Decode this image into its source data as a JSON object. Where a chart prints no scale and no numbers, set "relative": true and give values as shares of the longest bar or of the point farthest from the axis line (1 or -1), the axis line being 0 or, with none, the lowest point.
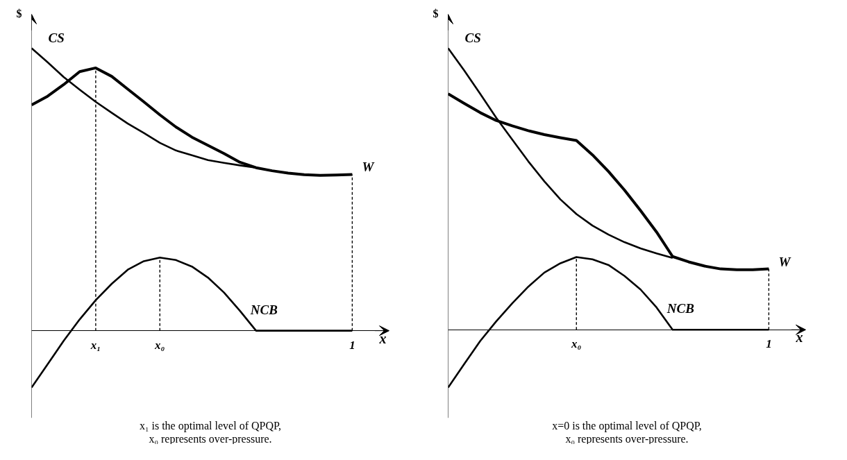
{
  "chart_data": [
    {
      "type": "line",
      "relative": true,
      "xlabel": "x",
      "ylabel": "$",
      "tick_labels": "x",
      "legend": false,
      "marker": "none",
      "categories": [
        null,
        null,
        null,
        null,
        "x₁",
        null,
        null,
        null,
        "x₀",
        null,
        null,
        null,
        null,
        null,
        null,
        null,
        null,
        null,
        null,
        null,
        "1"
      ],
      "series": [
        {
          "name": "CS",
          "color": "#000000",
          "values": [
            1,
            0.95,
            0.898,
            0.853,
            0.81,
            0.771,
            0.733,
            0.7,
            0.665,
            0.638,
            0.621,
            0.604,
            0.594,
            0.585,
            0.577,
            null,
            null,
            null,
            null,
            null,
            null
          ]
        },
        {
          "name": "W",
          "color": "#000000",
          "values": [
            0.799,
            0.83,
            0.871,
            0.917,
            0.93,
            0.9,
            0.855,
            0.81,
            0.764,
            0.721,
            0.685,
            0.656,
            0.627,
            0.596,
            0.577,
            0.566,
            0.558,
            0.552,
            0.55,
            0.551,
            0.553
          ]
        },
        {
          "name": "NCB",
          "color": "#000000",
          "values": [
            -0.201,
            -0.119,
            -0.036,
            0.04,
            0.108,
            0.166,
            0.216,
            0.246,
            0.259,
            0.25,
            0.227,
            0.188,
            0.135,
            0.07,
            0,
            0,
            0,
            0,
            0,
            0,
            0
          ]
        }
      ],
      "ref_lines": [
        {
          "axis": "x",
          "value": "x₁",
          "color": "#000000",
          "line_style": "dashed"
        },
        {
          "axis": "x",
          "value": "x₀",
          "color": "#000000",
          "line_style": "dashed"
        },
        {
          "axis": "x",
          "value": "1",
          "color": "#000000",
          "line_style": "dashed"
        }
      ],
      "annotations": [
        "x₁ is the optimal level of QPQP,",
        "x₀ represents over-pressure."
      ]
    },
    {
      "type": "line",
      "relative": true,
      "xlabel": "x",
      "ylabel": "$",
      "tick_labels": "x",
      "legend": false,
      "marker": "none",
      "categories": [
        null,
        null,
        null,
        null,
        null,
        null,
        null,
        null,
        "x₀",
        null,
        null,
        null,
        null,
        null,
        null,
        null,
        null,
        null,
        null,
        null,
        "1"
      ],
      "series": [
        {
          "name": "CS",
          "color": "#000000",
          "values": [
            1,
            0.921,
            0.838,
            0.753,
            0.675,
            0.598,
            0.527,
            0.463,
            0.411,
            0.37,
            0.338,
            0.311,
            0.289,
            0.271,
            0.255,
            null,
            null,
            null,
            null,
            null,
            null
          ]
        },
        {
          "name": "W",
          "color": "#000000",
          "values": [
            0.838,
            0.804,
            0.771,
            0.743,
            0.724,
            0.707,
            0.693,
            0.682,
            0.672,
            0.621,
            0.562,
            0.496,
            0.423,
            0.347,
            0.26,
            0.241,
            0.226,
            0.216,
            0.213,
            0.213,
            0.216
          ]
        },
        {
          "name": "NCB",
          "color": "#000000",
          "values": [
            -0.205,
            -0.122,
            -0.04,
            0.03,
            0.094,
            0.153,
            0.203,
            0.236,
            0.258,
            0.25,
            0.23,
            0.191,
            0.143,
            0.079,
            0,
            0,
            0,
            0,
            0,
            0,
            0
          ]
        }
      ],
      "ref_lines": [
        {
          "axis": "x",
          "value": "x₀",
          "color": "#000000",
          "line_style": "dashed"
        },
        {
          "axis": "x",
          "value": "1",
          "color": "#000000",
          "line_style": "dashed"
        }
      ],
      "annotations": [
        "x=0 is the optimal level of QPQP,",
        "x₀ represents over-pressure."
      ]
    }
  ]
}
